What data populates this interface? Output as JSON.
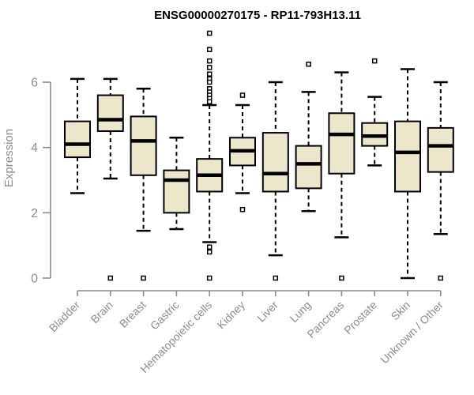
{
  "chart_data": {
    "type": "boxplot",
    "title": "ENSG00000270175 - RP11-793H13.11",
    "xlabel": "",
    "ylabel": "Expression",
    "ylim": [
      0,
      6
    ],
    "yticks": [
      0,
      2,
      4,
      6
    ],
    "grid": false,
    "legend": "none",
    "categories": [
      "Bladder",
      "Brain",
      "Breast",
      "Gastric",
      "Hematopoietic cells",
      "Kidney",
      "Liver",
      "Lung",
      "Pancreas",
      "Prostate",
      "Skin",
      "Unknown / Other"
    ],
    "series": [
      {
        "category": "Bladder",
        "whisker_low": 2.6,
        "q1": 3.7,
        "median": 4.1,
        "q3": 4.8,
        "whisker_high": 6.1,
        "outliers": []
      },
      {
        "category": "Brain",
        "whisker_low": 3.05,
        "q1": 4.5,
        "median": 4.85,
        "q3": 5.6,
        "whisker_high": 6.1,
        "outliers": [
          0
        ]
      },
      {
        "category": "Breast",
        "whisker_low": 1.45,
        "q1": 3.15,
        "median": 4.2,
        "q3": 4.95,
        "whisker_high": 5.8,
        "outliers": [
          0
        ]
      },
      {
        "category": "Gastric",
        "whisker_low": 1.5,
        "q1": 2.0,
        "median": 3.0,
        "q3": 3.3,
        "whisker_high": 4.3,
        "outliers": []
      },
      {
        "category": "Hematopoietic cells",
        "whisker_low": 1.1,
        "q1": 2.65,
        "median": 3.15,
        "q3": 3.65,
        "whisker_high": 5.3,
        "outliers": [
          7.5,
          7.0,
          6.65,
          6.45,
          6.25,
          6.1,
          6.0,
          5.8,
          5.7,
          5.6,
          5.5,
          5.4,
          0.95,
          0.8,
          0
        ]
      },
      {
        "category": "Kidney",
        "whisker_low": 2.6,
        "q1": 3.45,
        "median": 3.9,
        "q3": 4.3,
        "whisker_high": 5.3,
        "outliers": [
          5.6,
          2.1
        ]
      },
      {
        "category": "Liver",
        "whisker_low": 0.7,
        "q1": 2.65,
        "median": 3.2,
        "q3": 4.45,
        "whisker_high": 6.0,
        "outliers": [
          0
        ]
      },
      {
        "category": "Lung",
        "whisker_low": 2.05,
        "q1": 2.75,
        "median": 3.5,
        "q3": 4.05,
        "whisker_high": 5.7,
        "outliers": [
          6.55
        ]
      },
      {
        "category": "Pancreas",
        "whisker_low": 1.25,
        "q1": 3.2,
        "median": 4.4,
        "q3": 5.05,
        "whisker_high": 6.3,
        "outliers": [
          0
        ]
      },
      {
        "category": "Prostate",
        "whisker_low": 3.45,
        "q1": 4.05,
        "median": 4.35,
        "q3": 4.75,
        "whisker_high": 5.55,
        "outliers": [
          6.65
        ]
      },
      {
        "category": "Skin",
        "whisker_low": 0.0,
        "q1": 2.65,
        "median": 3.85,
        "q3": 4.8,
        "whisker_high": 6.4,
        "outliers": []
      },
      {
        "category": "Unknown / Other",
        "whisker_low": 1.35,
        "q1": 3.25,
        "median": 4.05,
        "q3": 4.6,
        "whisker_high": 6.0,
        "outliers": [
          0
        ]
      }
    ],
    "colors": {
      "box_fill": "#ECE6CB",
      "box_border": "#000000",
      "median": "#000000",
      "whisker": "#000000",
      "outlier_fill": "#ffffff",
      "axis": "#8c8c8c",
      "tick_label": "#8c8c8c",
      "title": "#000000",
      "background": "#ffffff"
    }
  }
}
